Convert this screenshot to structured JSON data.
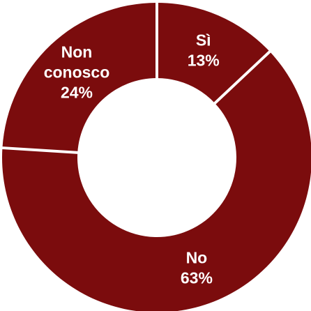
{
  "chart_data": {
    "type": "pie",
    "donut": true,
    "categories": [
      "Sì",
      "No",
      "Non conosco"
    ],
    "values": [
      13,
      63,
      24
    ],
    "value_labels": [
      "13%",
      "63%",
      "24%"
    ],
    "label_lines": [
      [
        "Sì",
        "13%"
      ],
      [
        "No",
        "63%"
      ],
      [
        "Non",
        "conosco",
        "24%"
      ]
    ],
    "slice_color": "#7b0c0d",
    "separator_color": "#ffffff",
    "label_color": "#ffffff",
    "title": "",
    "legend": "none"
  }
}
